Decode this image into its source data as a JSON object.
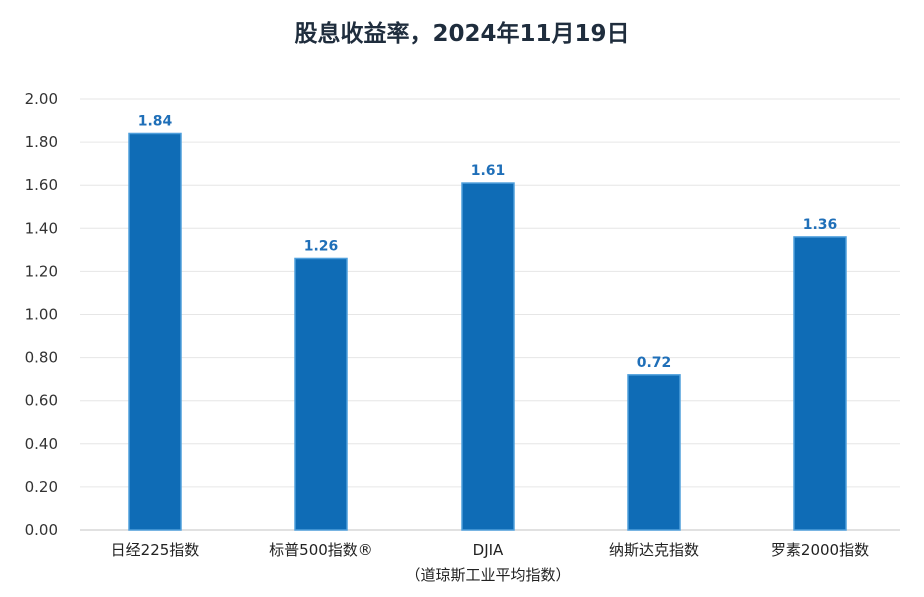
{
  "chart_data": {
    "type": "bar",
    "title": "股息收益率，2024年11月19日",
    "categories": [
      "日经225指数",
      "标普500指数®",
      "DJIA",
      "纳斯达克指数",
      "罗素2000指数"
    ],
    "category_sublabels": [
      "",
      "",
      "（道琼斯工业平均指数）",
      "",
      ""
    ],
    "values": [
      1.84,
      1.26,
      1.61,
      0.72,
      1.36
    ],
    "data_labels": [
      "1.84",
      "1.26",
      "1.61",
      "0.72",
      "1.36"
    ],
    "ylim": [
      0,
      2.0
    ],
    "yticks": [
      "0.00",
      "0.20",
      "0.40",
      "0.60",
      "0.80",
      "1.00",
      "1.20",
      "1.40",
      "1.60",
      "1.80",
      "2.00"
    ],
    "xlabel": "",
    "ylabel": "",
    "grid": true,
    "bar_color": "#0f6cb6",
    "bar_edge_color": "#4f9fdc",
    "label_color": "#1f6fb8"
  }
}
